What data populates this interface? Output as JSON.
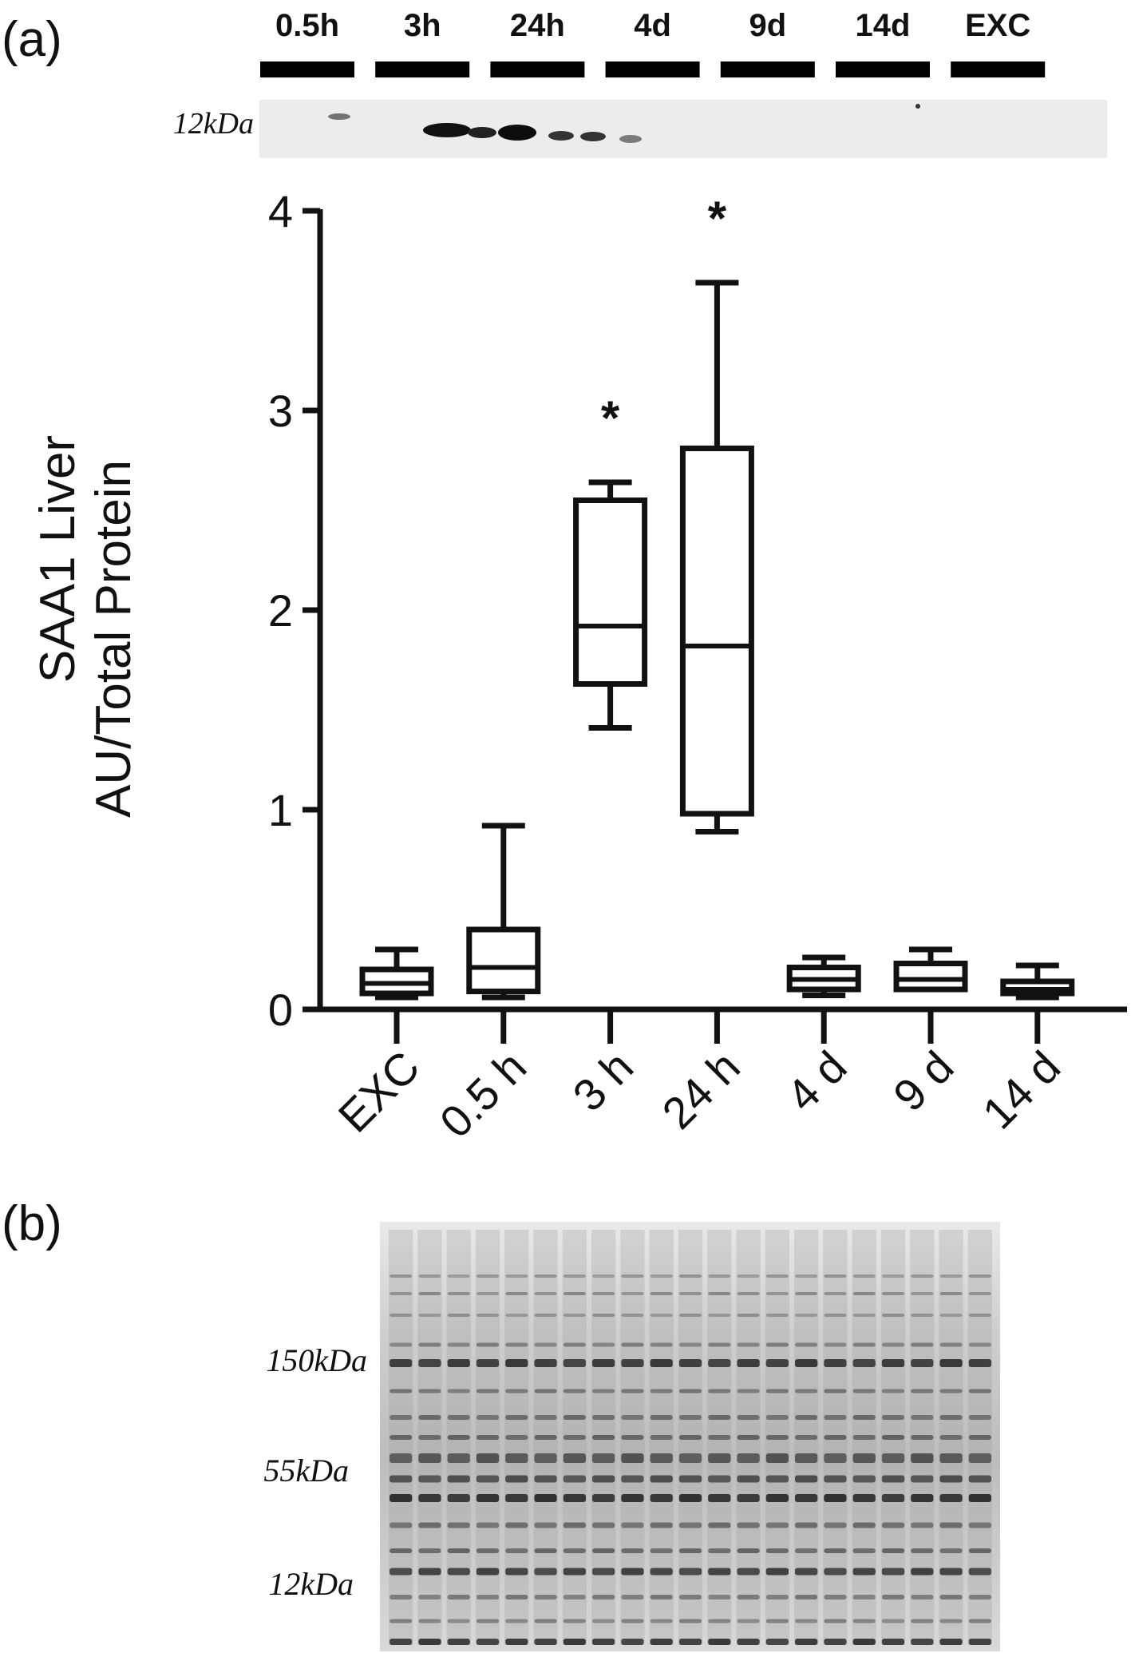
{
  "panel_a": {
    "label": "(a)",
    "blot": {
      "lanes": [
        "0.5h",
        "3h",
        "24h",
        "4d",
        "9d",
        "14d",
        "EXC"
      ],
      "marker": "12kDa"
    }
  },
  "panel_b": {
    "label": "(b)",
    "markers": [
      "150kDa",
      "55kDa",
      "12kDa"
    ]
  },
  "chart_data": {
    "type": "box",
    "ylabel_line1": "SAA1 Liver",
    "ylabel_line2": "AU/Total Protein",
    "ylim": [
      0,
      4
    ],
    "yticks": [
      "0",
      "1",
      "2",
      "3",
      "4"
    ],
    "categories": [
      "EXC",
      "0.5 h",
      "3 h",
      "24 h",
      "4 d",
      "9 d",
      "14 d"
    ],
    "boxes": [
      {
        "min": 0.06,
        "q1": 0.08,
        "median": 0.13,
        "q3": 0.2,
        "max": 0.3,
        "sig": ""
      },
      {
        "min": 0.06,
        "q1": 0.09,
        "median": 0.21,
        "q3": 0.4,
        "max": 0.92,
        "sig": ""
      },
      {
        "min": 1.41,
        "q1": 1.63,
        "median": 1.92,
        "q3": 2.55,
        "max": 2.64,
        "sig": "*"
      },
      {
        "min": 0.89,
        "q1": 0.98,
        "median": 1.82,
        "q3": 2.81,
        "max": 3.64,
        "sig": "*"
      },
      {
        "min": 0.07,
        "q1": 0.1,
        "median": 0.15,
        "q3": 0.21,
        "max": 0.26,
        "sig": ""
      },
      {
        "min": 0.1,
        "q1": 0.1,
        "median": 0.15,
        "q3": 0.23,
        "max": 0.3,
        "sig": ""
      },
      {
        "min": 0.06,
        "q1": 0.08,
        "median": 0.1,
        "q3": 0.14,
        "max": 0.22,
        "sig": ""
      }
    ]
  }
}
